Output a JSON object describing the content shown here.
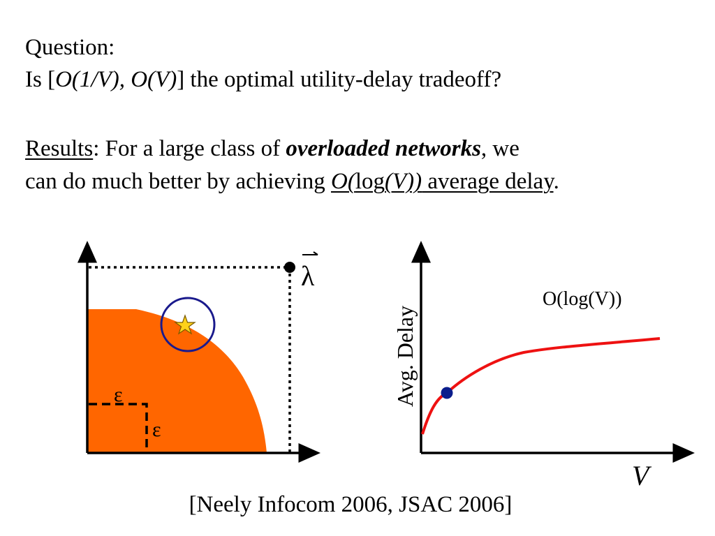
{
  "question": {
    "heading": "Question:",
    "line_prefix": "Is [",
    "line_math": "O(1/V), O(V)",
    "line_suffix": "] the optimal utility-delay tradeoff?"
  },
  "results": {
    "label": "Results",
    "colon": ":  For a large class of ",
    "emphasis": "overloaded networks",
    "after_emphasis": ", we",
    "line2_prefix": "can do much better by achieving ",
    "bound_O": "O(",
    "bound_log": "log",
    "bound_V": "(V))",
    "bound_suffix": " average delay",
    "period": "."
  },
  "region_diagram": {
    "lambda_label": "λ",
    "epsilon_label_1": "ε",
    "epsilon_label_2": "ε",
    "colors": {
      "region_fill": "#ff6600",
      "circle": "#1a1a8c",
      "star_fill": "#ffd21a",
      "star_stroke": "#7a5a00"
    }
  },
  "delay_chart": {
    "ylabel": "Avg.  Delay",
    "xlabel": "V",
    "curve_label": "O(log(V))",
    "colors": {
      "curve": "#ee1111",
      "point": "#0b1d8c"
    }
  },
  "citation": "[Neely Infocom 2006, JSAC 2006]"
}
